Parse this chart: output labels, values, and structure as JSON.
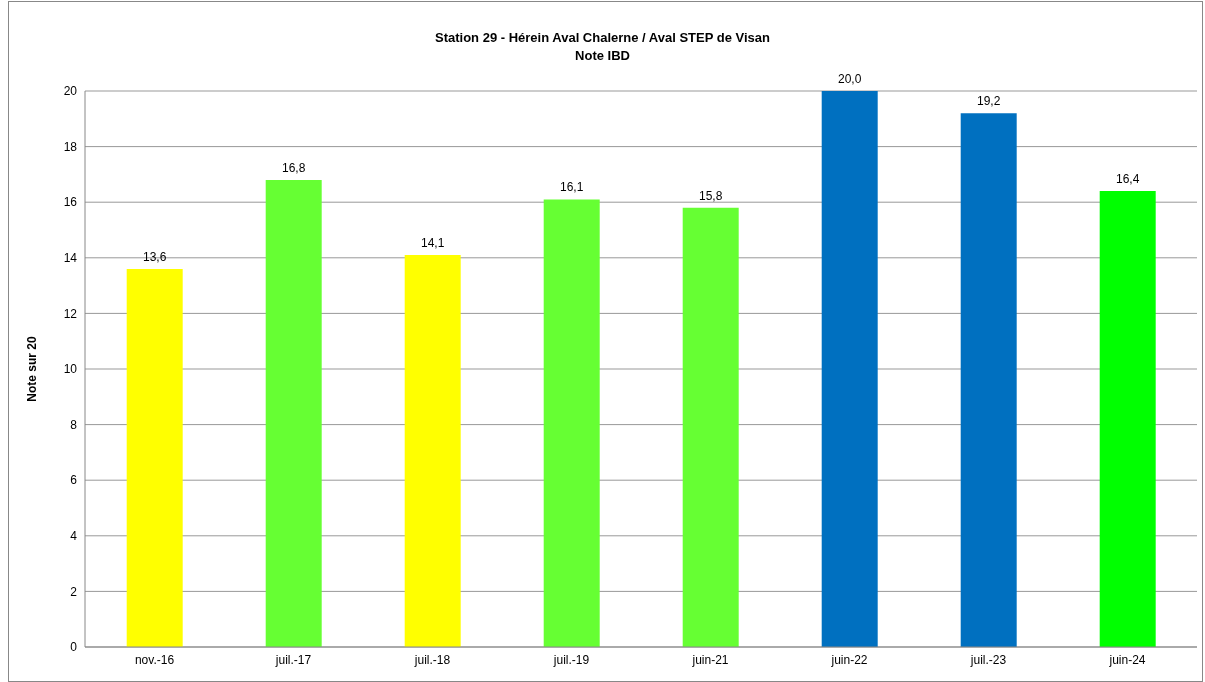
{
  "chart_data": {
    "type": "bar",
    "title": "Station 29 - Hérein Aval Chalerne / Aval STEP de Visan",
    "subtitle": "Note IBD",
    "ylabel": "Note sur 20",
    "categories": [
      "nov.-16",
      "juil.-17",
      "juil.-18",
      "juil.-19",
      "juin-21",
      "juin-22",
      "juil.-23",
      "juin-24"
    ],
    "values": [
      13.6,
      16.8,
      14.1,
      16.1,
      15.8,
      20.0,
      19.2,
      16.4
    ],
    "colors": [
      "#ffff00",
      "#66ff33",
      "#ffff00",
      "#66ff33",
      "#66ff33",
      "#0070c0",
      "#0070c0",
      "#00ff00"
    ],
    "value_labels": [
      "13,6",
      "16,8",
      "14,1",
      "16,1",
      "15,8",
      "20,0",
      "19,2",
      "16,4"
    ],
    "ylim": [
      0,
      20
    ],
    "yticks": [
      0,
      2,
      4,
      6,
      8,
      10,
      12,
      14,
      16,
      18,
      20
    ],
    "grid": "y"
  }
}
